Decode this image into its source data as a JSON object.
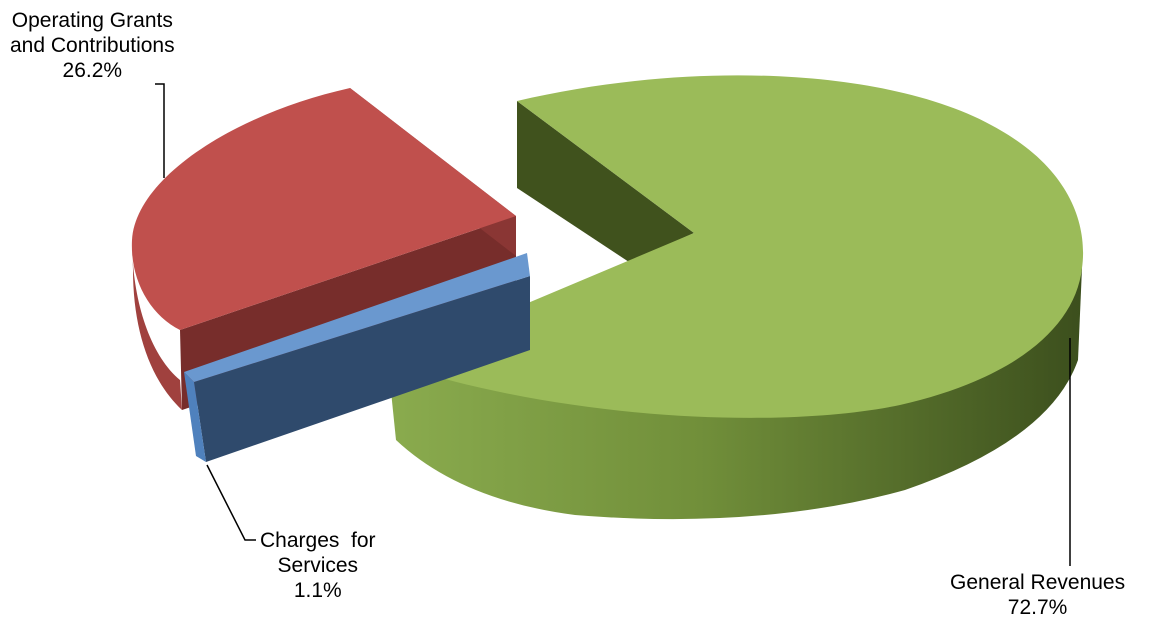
{
  "chart_data": {
    "type": "pie",
    "style": "3d-exploded",
    "title": "",
    "slices": [
      {
        "label": "General Revenues",
        "percent_label": "72.7%",
        "value": 72.7,
        "color": "#9bbb59"
      },
      {
        "label": "Operating Grants and Contributions",
        "label_lines": [
          "Operating Grants",
          "and Contributions"
        ],
        "percent_label": "26.2%",
        "value": 26.2,
        "color": "#c0504d"
      },
      {
        "label": "Charges for Services",
        "label_lines": [
          "Charges  for",
          "Services"
        ],
        "percent_label": "1.1%",
        "value": 1.1,
        "color": "#4f81bd"
      }
    ]
  }
}
